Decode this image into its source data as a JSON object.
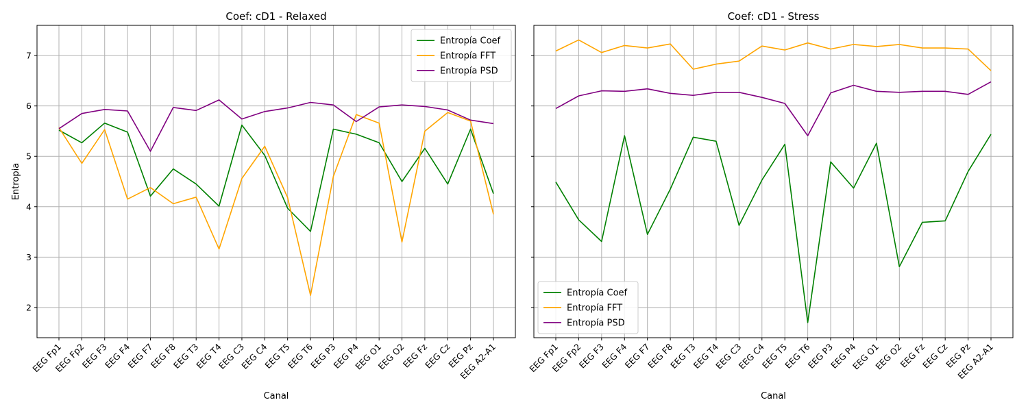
{
  "chart_data": [
    {
      "type": "line",
      "title": "Coef: cD1 - Relaxed",
      "xlabel": "Canal",
      "ylabel": "Entropia",
      "ylim": [
        1.4,
        7.6
      ],
      "yticks": [
        2,
        3,
        4,
        5,
        6,
        7
      ],
      "grid": true,
      "legend_position": "top-right",
      "categories": [
        "EEG Fp1",
        "EEG Fp2",
        "EEG F3",
        "EEG F4",
        "EEG F7",
        "EEG F8",
        "EEG T3",
        "EEG T4",
        "EEG C3",
        "EEG C4",
        "EEG T5",
        "EEG T6",
        "EEG P3",
        "EEG P4",
        "EEG O1",
        "EEG O2",
        "EEG Fz",
        "EEG Cz",
        "EEG Pz",
        "EEG A2-A1"
      ],
      "series": [
        {
          "name": "Entropía Coef",
          "color": "#008000",
          "values": [
            5.52,
            5.27,
            5.66,
            5.48,
            4.21,
            4.75,
            4.45,
            4.01,
            5.62,
            5.02,
            3.97,
            3.51,
            5.54,
            5.44,
            5.27,
            4.5,
            5.16,
            4.45,
            5.54,
            4.26
          ]
        },
        {
          "name": "Entropía FFT",
          "color": "#ffa500",
          "values": [
            5.57,
            4.86,
            5.53,
            4.15,
            4.38,
            4.06,
            4.19,
            3.16,
            4.56,
            5.2,
            4.18,
            2.24,
            4.6,
            5.83,
            5.66,
            3.3,
            5.5,
            5.87,
            5.7,
            3.85
          ]
        },
        {
          "name": "Entropía PSD",
          "color": "#800080",
          "values": [
            5.55,
            5.85,
            5.93,
            5.9,
            5.1,
            5.97,
            5.91,
            6.12,
            5.74,
            5.89,
            5.96,
            6.07,
            6.02,
            5.69,
            5.98,
            6.02,
            5.99,
            5.92,
            5.72,
            5.65
          ]
        }
      ]
    },
    {
      "type": "line",
      "title": "Coef: cD1 - Stress",
      "xlabel": "Canal",
      "ylabel": "",
      "ylim": [
        1.4,
        7.6
      ],
      "yticks": [
        2,
        3,
        4,
        5,
        6,
        7
      ],
      "grid": true,
      "legend_position": "bottom-left",
      "categories": [
        "EEG Fp1",
        "EEG Fp2",
        "EEG F3",
        "EEG F4",
        "EEG F7",
        "EEG F8",
        "EEG T3",
        "EEG T4",
        "EEG C3",
        "EEG C4",
        "EEG T5",
        "EEG T6",
        "EEG P3",
        "EEG P4",
        "EEG O1",
        "EEG O2",
        "EEG Fz",
        "EEG Cz",
        "EEG Pz",
        "EEG A2-A1"
      ],
      "series": [
        {
          "name": "Entropía Coef",
          "color": "#008000",
          "values": [
            4.49,
            3.74,
            3.31,
            5.41,
            3.45,
            4.35,
            5.38,
            5.3,
            3.63,
            4.53,
            5.24,
            1.7,
            4.89,
            4.37,
            5.26,
            2.81,
            3.69,
            3.72,
            4.7,
            5.44
          ]
        },
        {
          "name": "Entropía FFT",
          "color": "#ffa500",
          "values": [
            7.09,
            7.31,
            7.06,
            7.2,
            7.15,
            7.23,
            6.73,
            6.83,
            6.89,
            7.19,
            7.11,
            7.25,
            7.13,
            7.22,
            7.18,
            7.22,
            7.15,
            7.15,
            7.13,
            6.7
          ]
        },
        {
          "name": "Entropía PSD",
          "color": "#800080",
          "values": [
            5.95,
            6.2,
            6.3,
            6.29,
            6.34,
            6.25,
            6.21,
            6.27,
            6.27,
            6.17,
            6.05,
            5.41,
            6.26,
            6.41,
            6.29,
            6.27,
            6.29,
            6.29,
            6.23,
            6.48
          ]
        }
      ]
    }
  ]
}
